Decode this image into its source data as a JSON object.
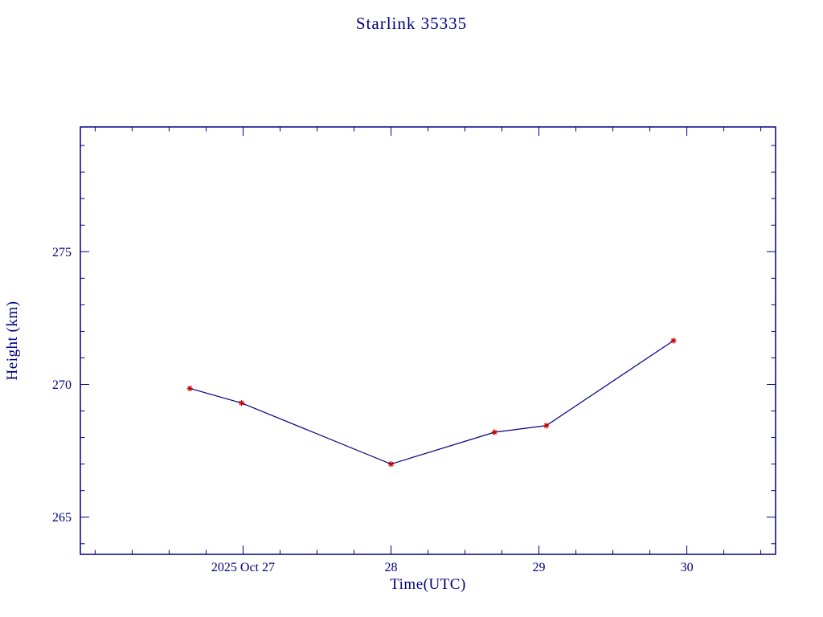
{
  "chart_data": {
    "type": "line",
    "title": "Starlink 35335",
    "xlabel": "Time(UTC)",
    "ylabel": "Height (km)",
    "xlim": [
      25.9,
      30.6
    ],
    "ylim": [
      263.6,
      279.7
    ],
    "xticks": [
      {
        "v": 27,
        "label": "2025 Oct 27"
      },
      {
        "v": 28,
        "label": "28"
      },
      {
        "v": 29,
        "label": "29"
      },
      {
        "v": 30,
        "label": "30"
      }
    ],
    "yticks": [
      {
        "v": 265,
        "label": "265"
      },
      {
        "v": 270,
        "label": "270"
      },
      {
        "v": 275,
        "label": "275"
      }
    ],
    "x_minor_step": 0.25,
    "y_minor_step": 1,
    "series": [
      {
        "name": "height",
        "x": [
          26.64,
          26.99,
          28.0,
          28.7,
          29.05,
          29.91
        ],
        "y": [
          269.85,
          269.3,
          267.0,
          268.2,
          268.45,
          271.65
        ]
      }
    ],
    "line_color": "#000080",
    "marker_color": "#cc0000",
    "axis_color": "#000080",
    "marker": "asterisk",
    "grid": false,
    "legend": "none"
  }
}
